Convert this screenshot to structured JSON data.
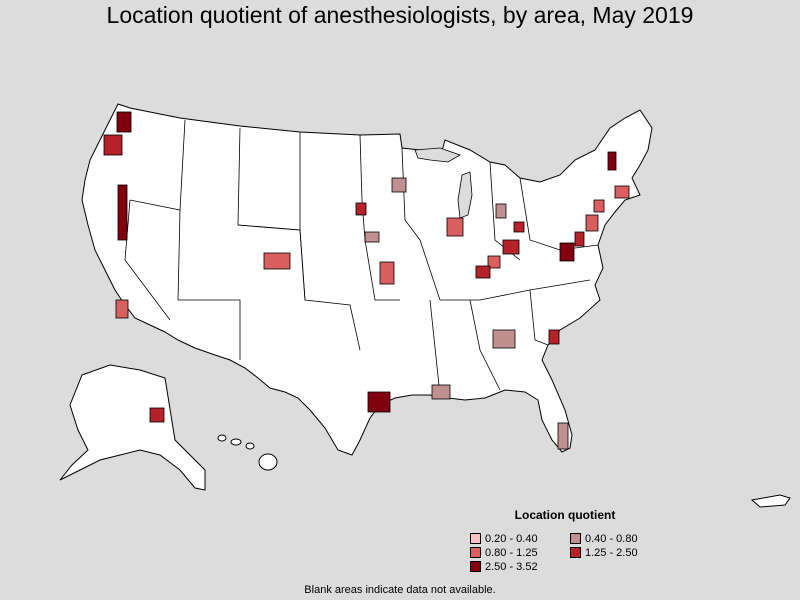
{
  "title": "Location quotient of anesthesiologists, by area, May 2019",
  "legend": {
    "title": "Location quotient",
    "items": [
      {
        "label": "0.20 - 0.40",
        "color": "#f4c2c6"
      },
      {
        "label": "0.40 - 0.80",
        "color": "#c08f8f"
      },
      {
        "label": "0.80 - 1.25",
        "color": "#d9605f"
      },
      {
        "label": "1.25 - 2.50",
        "color": "#b52229"
      },
      {
        "label": "2.50 - 3.52",
        "color": "#800010"
      }
    ]
  },
  "footnote": "Blank areas indicate data not available.",
  "colors": {
    "background": "#dcdcdc",
    "land": "#ffffff",
    "border": "#000000"
  }
}
